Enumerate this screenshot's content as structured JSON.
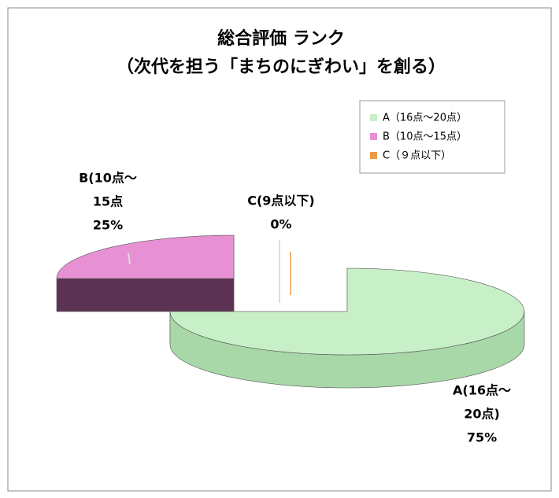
{
  "chart_data": {
    "type": "pie3d",
    "title": "総合評価 ランク",
    "subtitle": "（次代を担う「まちのにぎわい」を創る）",
    "categories": [
      "A（16点～20点）",
      "B（10点～15点）",
      "C（９点以下）"
    ],
    "values": [
      75,
      25,
      0
    ],
    "value_labels": [
      "75%",
      "25%",
      "0%"
    ],
    "data_label_lines": [
      [
        "A(16点～",
        "20点)"
      ],
      [
        "B(10点～",
        "15点"
      ],
      [
        "C(9点以下)"
      ]
    ],
    "colors": [
      "#c8f0c8",
      "#e890d4",
      "#f09a48"
    ],
    "side_colors": [
      "#a8d8a8",
      "#5c3352",
      "#a86020"
    ],
    "legend": "top-right"
  }
}
